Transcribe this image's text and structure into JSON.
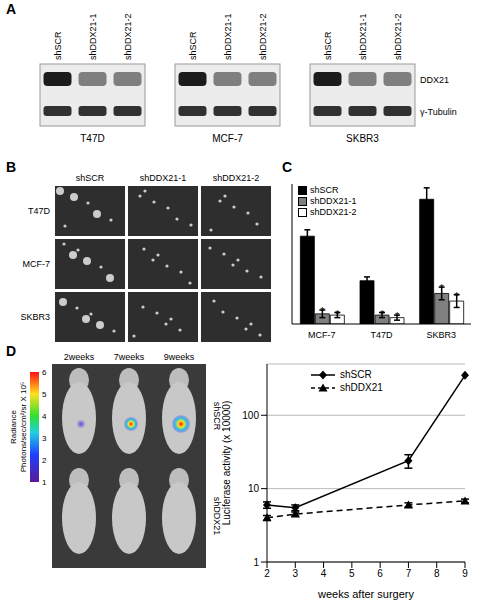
{
  "panel_labels": [
    "A",
    "B",
    "C",
    "D"
  ],
  "western_blot": {
    "cell_lines": [
      "T47D",
      "MCF-7",
      "SKBR3"
    ],
    "lanes": [
      "shSCR",
      "shDDX21-1",
      "shDDX21-2"
    ],
    "bands": [
      "DDX21",
      "γ-Tubulin"
    ]
  },
  "colony_images": {
    "columns": [
      "shSCR",
      "shDDX21-1",
      "shDDX21-2"
    ],
    "rows": [
      "T47D",
      "MCF-7",
      "SKBR3"
    ]
  },
  "imaging": {
    "timepoints": [
      "2weeks",
      "7weeks",
      "9weeks"
    ],
    "rows": [
      "shSCR",
      "shDDX21"
    ],
    "colorbar": {
      "title": "Radiance",
      "label": "Photons/sec/cm²/sr X 10⁵",
      "range": [
        1,
        6
      ],
      "ticks": [
        1,
        2,
        3,
        4,
        5,
        6
      ]
    }
  },
  "chart_data": [
    {
      "type": "bar",
      "categories": [
        "MCF-7",
        "T47D",
        "SKBR3"
      ],
      "series": [
        {
          "name": "shSCR",
          "color": "#000000",
          "values": [
            69,
            34,
            98
          ],
          "errors": [
            5,
            3,
            9
          ]
        },
        {
          "name": "shDDX21-1",
          "color": "#808080",
          "values": [
            8,
            7,
            24
          ],
          "errors": [
            3,
            2,
            5
          ],
          "annotations": [
            "*",
            "*",
            "*"
          ]
        },
        {
          "name": "shDDX21-2",
          "color": "#ffffff",
          "values": [
            7,
            5,
            18
          ],
          "errors": [
            2,
            2,
            5
          ],
          "annotations": [
            "*",
            "*",
            "*"
          ]
        }
      ],
      "ylim": [
        0,
        110
      ],
      "yticks": [],
      "tick_labels": "x",
      "legend": "upper left",
      "grid": false
    },
    {
      "type": "line",
      "x": [
        2,
        3,
        7,
        9
      ],
      "series": [
        {
          "name": "shSCR",
          "color": "#000000",
          "values": [
            6,
            5.5,
            24,
            350
          ],
          "errors": [
            0.6,
            0.5,
            5,
            0
          ],
          "marker": "diamond",
          "line_style": "solid"
        },
        {
          "name": "shDDX21",
          "color": "#000000",
          "values": [
            4,
            4.5,
            6,
            6.8
          ],
          "errors": [
            0.3,
            0.3,
            0.4,
            0.4
          ],
          "marker": "triangle",
          "line_style": "dashed"
        }
      ],
      "xlabel": "weeks after surgery",
      "ylabel": "Luciferase activity (x 10000)",
      "xlim": [
        2,
        9
      ],
      "xticks": [
        2,
        3,
        4,
        5,
        6,
        7,
        8,
        9
      ],
      "ylim": [
        1,
        500
      ],
      "yticks": [
        1,
        10,
        100
      ],
      "log": "y",
      "grid": true,
      "legend": "upper center"
    }
  ]
}
